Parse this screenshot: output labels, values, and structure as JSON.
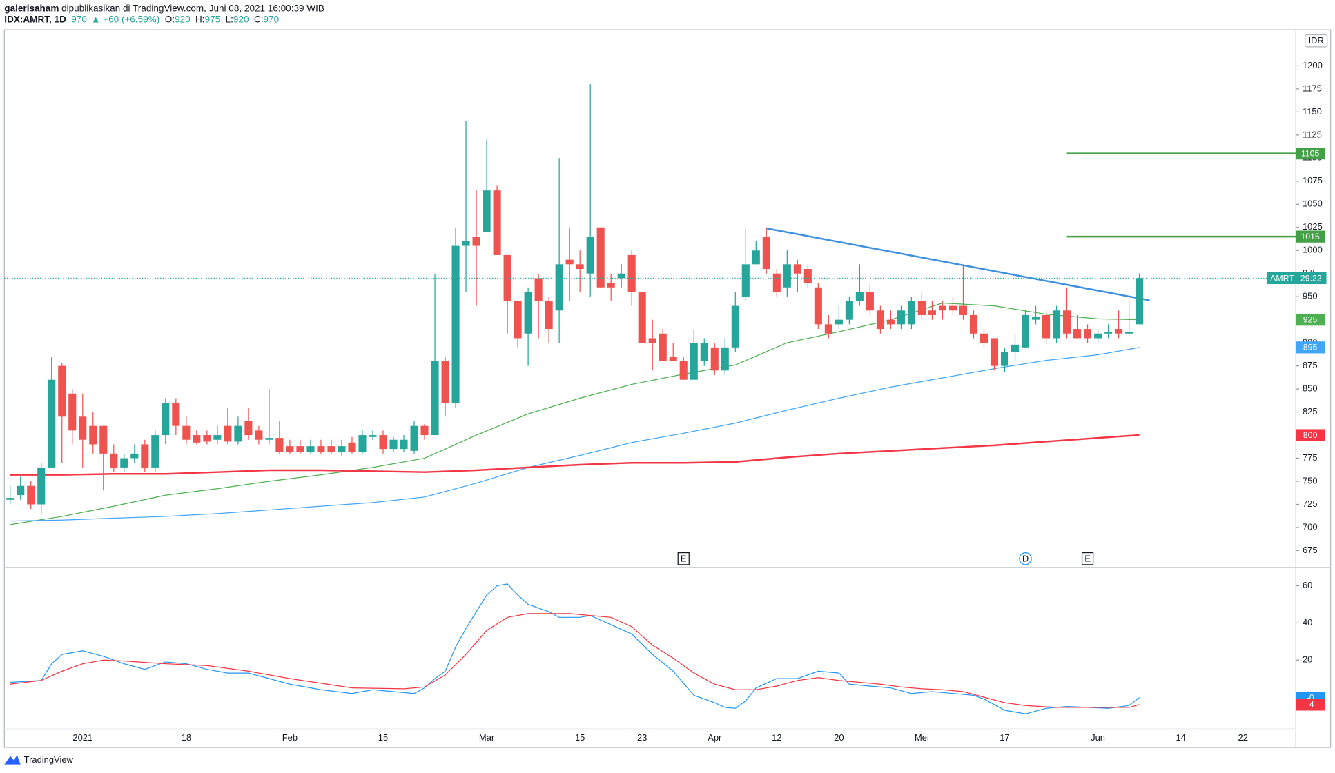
{
  "header": {
    "author": "galerisaham",
    "published": "dipublikasikan di TradingView.com, Juni 08, 2021 16:00:39 WIB",
    "symbol": "IDX:AMRT, 1D",
    "last": "970",
    "change": "▲ +60 (+6.59%)",
    "quote": [
      {
        "k": "O:",
        "v": "920"
      },
      {
        "k": "H:",
        "v": "975"
      },
      {
        "k": "L:",
        "v": "920"
      },
      {
        "k": "C:",
        "v": "970"
      }
    ]
  },
  "footer": "TradingView",
  "chart_data": [
    {
      "type": "candlestick",
      "unit_label": "IDR",
      "up_color": "#26a69a",
      "down_color": "#ef5350",
      "grid": false,
      "categories": [
        null,
        null,
        null,
        null,
        null,
        null,
        null,
        "2021",
        null,
        null,
        null,
        null,
        null,
        null,
        null,
        null,
        null,
        "18",
        null,
        null,
        null,
        null,
        null,
        null,
        null,
        null,
        null,
        "Feb",
        null,
        null,
        null,
        null,
        null,
        null,
        null,
        null,
        "15",
        null,
        null,
        null,
        null,
        null,
        null,
        null,
        null,
        null,
        "Mar",
        null,
        null,
        null,
        null,
        null,
        null,
        null,
        null,
        "15",
        null,
        null,
        null,
        null,
        null,
        "23",
        null,
        null,
        null,
        null,
        null,
        null,
        "Apr",
        null,
        null,
        null,
        null,
        null,
        "12",
        null,
        null,
        null,
        null,
        null,
        "20",
        null,
        null,
        null,
        null,
        null,
        null,
        null,
        "Mei",
        null,
        null,
        null,
        null,
        null,
        null,
        null,
        "17",
        null,
        null,
        null,
        null,
        null,
        null,
        null,
        null,
        "Jun",
        null,
        null,
        null,
        null,
        null,
        null,
        null,
        "14",
        null,
        null,
        null,
        null,
        null,
        "22"
      ],
      "open": [
        730,
        735,
        745,
        725,
        765,
        875,
        845,
        820,
        810,
        810,
        780,
        765,
        775,
        790,
        765,
        800,
        835,
        810,
        800,
        800,
        795,
        810,
        793,
        815,
        805,
        795,
        797,
        788,
        788,
        782,
        788,
        788,
        782,
        792,
        782,
        798,
        800,
        785,
        785,
        783,
        810,
        800,
        880,
        835,
        1005,
        1015,
        1020,
        1065,
        995,
        945,
        910,
        970,
        945,
        935,
        990,
        985,
        975,
        1025,
        965,
        970,
        995,
        955,
        905,
        910,
        885,
        880,
        860,
        880,
        895,
        870,
        895,
        950,
        985,
        1015,
        975,
        960,
        985,
        980,
        960,
        920,
        920,
        925,
        945,
        955,
        935,
        925,
        920,
        920,
        945,
        935,
        940,
        940,
        940,
        930,
        910,
        905,
        875,
        890,
        895,
        925,
        930,
        905,
        935,
        915,
        915,
        905,
        910,
        915,
        910,
        920,
        null,
        null,
        null,
        null,
        null,
        null,
        null,
        null,
        null,
        null
      ],
      "high": [
        745,
        755,
        750,
        770,
        885,
        878,
        850,
        845,
        825,
        810,
        790,
        780,
        790,
        795,
        805,
        840,
        840,
        820,
        805,
        805,
        810,
        830,
        820,
        830,
        810,
        850,
        815,
        795,
        795,
        795,
        795,
        795,
        795,
        798,
        805,
        805,
        805,
        798,
        800,
        815,
        812,
        975,
        885,
        1025,
        1140,
        1065,
        1120,
        1070,
        995,
        945,
        960,
        975,
        950,
        1100,
        1025,
        1000,
        1180,
        1025,
        975,
        985,
        1000,
        955,
        925,
        915,
        900,
        885,
        915,
        905,
        900,
        905,
        955,
        1025,
        1010,
        1025,
        980,
        1000,
        990,
        985,
        965,
        930,
        940,
        950,
        985,
        965,
        940,
        935,
        940,
        950,
        955,
        945,
        945,
        950,
        985,
        935,
        915,
        905,
        895,
        910,
        935,
        940,
        935,
        940,
        960,
        930,
        920,
        915,
        920,
        935,
        945,
        975,
        null,
        null,
        null,
        null,
        null,
        null,
        null,
        null,
        null,
        null
      ],
      "low": [
        725,
        730,
        720,
        715,
        765,
        770,
        790,
        765,
        780,
        740,
        760,
        760,
        770,
        760,
        760,
        790,
        800,
        790,
        790,
        790,
        790,
        790,
        790,
        795,
        790,
        790,
        780,
        780,
        780,
        780,
        780,
        780,
        778,
        780,
        780,
        795,
        780,
        782,
        782,
        780,
        795,
        800,
        820,
        830,
        955,
        940,
        1020,
        995,
        910,
        895,
        875,
        905,
        900,
        900,
        945,
        955,
        950,
        960,
        945,
        960,
        940,
        900,
        870,
        880,
        880,
        860,
        860,
        875,
        865,
        865,
        890,
        945,
        985,
        975,
        950,
        950,
        955,
        960,
        915,
        905,
        915,
        920,
        940,
        930,
        910,
        915,
        915,
        915,
        925,
        925,
        925,
        930,
        925,
        905,
        895,
        870,
        868,
        880,
        895,
        920,
        900,
        900,
        905,
        905,
        900,
        900,
        905,
        905,
        908,
        920,
        null,
        null,
        null,
        null,
        null,
        null,
        null,
        null,
        null,
        null
      ],
      "close": [
        732,
        745,
        725,
        765,
        860,
        820,
        805,
        795,
        790,
        780,
        765,
        775,
        780,
        765,
        800,
        835,
        810,
        795,
        792,
        793,
        800,
        793,
        810,
        800,
        795,
        797,
        782,
        782,
        782,
        788,
        782,
        782,
        788,
        782,
        800,
        800,
        785,
        795,
        795,
        810,
        800,
        880,
        835,
        1005,
        1010,
        1005,
        1065,
        995,
        945,
        905,
        955,
        945,
        915,
        985,
        985,
        980,
        1015,
        960,
        960,
        975,
        955,
        900,
        900,
        880,
        880,
        860,
        900,
        900,
        870,
        895,
        940,
        985,
        1000,
        980,
        955,
        985,
        975,
        965,
        920,
        910,
        925,
        945,
        955,
        935,
        915,
        920,
        935,
        945,
        930,
        930,
        935,
        935,
        930,
        910,
        900,
        875,
        890,
        898,
        930,
        928,
        905,
        935,
        910,
        905,
        905,
        910,
        912,
        910,
        912,
        970,
        null,
        null,
        null,
        null,
        null,
        null,
        null,
        null,
        null,
        null
      ],
      "lines": [
        {
          "color": "#4caf50",
          "width": 1,
          "tag": true,
          "x": [
            0,
            5,
            10,
            15,
            20,
            25,
            30,
            35,
            40,
            45,
            50,
            55,
            60,
            65,
            70,
            75,
            80,
            85,
            90,
            95,
            100,
            105,
            109
          ],
          "values": [
            703,
            712,
            723,
            735,
            742,
            750,
            757,
            765,
            775,
            800,
            823,
            840,
            855,
            866,
            876,
            900,
            912,
            925,
            943,
            940,
            931,
            926,
            925
          ]
        },
        {
          "color": "#42a5f5",
          "width": 1,
          "tag": true,
          "x": [
            0,
            5,
            10,
            15,
            20,
            25,
            30,
            35,
            40,
            45,
            50,
            55,
            60,
            65,
            70,
            75,
            80,
            85,
            90,
            95,
            100,
            105,
            109
          ],
          "values": [
            707,
            708,
            710,
            712,
            715,
            719,
            723,
            727,
            733,
            748,
            765,
            778,
            792,
            802,
            813,
            827,
            840,
            852,
            862,
            872,
            881,
            887,
            895
          ]
        },
        {
          "color": "#f23645",
          "width": 2,
          "tag": true,
          "x": [
            0,
            5,
            10,
            15,
            20,
            25,
            30,
            35,
            40,
            45,
            50,
            55,
            60,
            65,
            70,
            75,
            80,
            85,
            90,
            95,
            100,
            105,
            109
          ],
          "values": [
            757,
            757,
            758,
            758,
            760,
            762,
            762,
            761,
            760,
            762,
            765,
            768,
            770,
            770,
            771,
            776,
            780,
            783,
            786,
            789,
            793,
            797,
            800
          ]
        },
        {
          "color": "#3d8fe0",
          "width": 2,
          "tag": false,
          "x": [
            73,
            110
          ],
          "values": [
            1024,
            946
          ]
        }
      ],
      "hlines": [
        {
          "value": 1105,
          "from": 102,
          "color": "#43a047"
        },
        {
          "value": 1015,
          "from": 102,
          "color": "#43a047"
        }
      ],
      "price_tag": {
        "symbol": "AMRT",
        "countdown": "29:22",
        "color": "#26a69a"
      },
      "events": [
        {
          "label": "E",
          "x": 65,
          "shape": "box"
        },
        {
          "label": "D",
          "x": 98,
          "shape": "circle"
        },
        {
          "label": "E",
          "x": 104,
          "shape": "box"
        }
      ],
      "ylim": [
        657,
        1239
      ],
      "yticks": [
        675,
        700,
        725,
        750,
        775,
        800,
        825,
        850,
        875,
        900,
        925,
        950,
        975,
        1000,
        1025,
        1050,
        1075,
        1100,
        1125,
        1150,
        1175,
        1200
      ]
    },
    {
      "type": "line",
      "ylim": [
        -17,
        70
      ],
      "yticks": [
        20,
        40,
        60
      ],
      "series": [
        {
          "color": "#2196f3",
          "last_label": "-0",
          "x": [
            0,
            3,
            4,
            5,
            7,
            9,
            11,
            13,
            15,
            17,
            19,
            21,
            23,
            25,
            27,
            30,
            33,
            35,
            37,
            39,
            40,
            41,
            42,
            43,
            44,
            45,
            46,
            47,
            48,
            49,
            50,
            52,
            53,
            55,
            56,
            58,
            60,
            62,
            64,
            66,
            68,
            69,
            70,
            71,
            72,
            74,
            76,
            78,
            80,
            81,
            83,
            85,
            87,
            89,
            91,
            93,
            94,
            96,
            98,
            100,
            102,
            104,
            106,
            108,
            109
          ],
          "values": [
            8,
            9,
            18,
            23,
            25,
            22,
            18,
            15,
            19,
            18,
            15,
            13,
            13,
            10,
            7,
            4,
            2,
            4,
            3,
            2,
            5,
            10,
            14,
            27,
            37,
            46,
            55,
            60,
            61,
            55,
            50,
            46,
            43,
            43,
            44,
            39,
            34,
            23,
            14,
            1,
            -3,
            -5.5,
            -6,
            -2,
            5,
            10,
            10,
            14,
            13,
            7,
            6,
            5,
            2,
            3,
            2,
            1,
            -1,
            -7,
            -9,
            -6,
            -5,
            -5.5,
            -6,
            -4.5,
            -0.2
          ]
        },
        {
          "color": "#f23645",
          "x": [
            0,
            3,
            5,
            7,
            9,
            11,
            15,
            19,
            23,
            27,
            33,
            38,
            40,
            42,
            44,
            46,
            48,
            50,
            52,
            54,
            56,
            58,
            60,
            62,
            64,
            66,
            68,
            70,
            72,
            74,
            76,
            78,
            80,
            82,
            84,
            86,
            88,
            90,
            92,
            94,
            96,
            98,
            101,
            105,
            108,
            109
          ],
          "values": [
            7,
            9,
            14,
            18,
            20,
            19.5,
            18,
            17,
            14,
            10,
            5,
            4.5,
            5.5,
            12,
            23,
            36,
            43,
            45,
            45,
            45,
            44,
            43,
            38,
            28,
            21,
            13,
            7,
            4,
            4,
            6,
            9,
            10.5,
            9,
            8,
            7,
            5.5,
            4.5,
            4,
            3,
            0,
            -3,
            -4.5,
            -5.5,
            -5.5,
            -5.5,
            -4
          ]
        }
      ]
    }
  ]
}
